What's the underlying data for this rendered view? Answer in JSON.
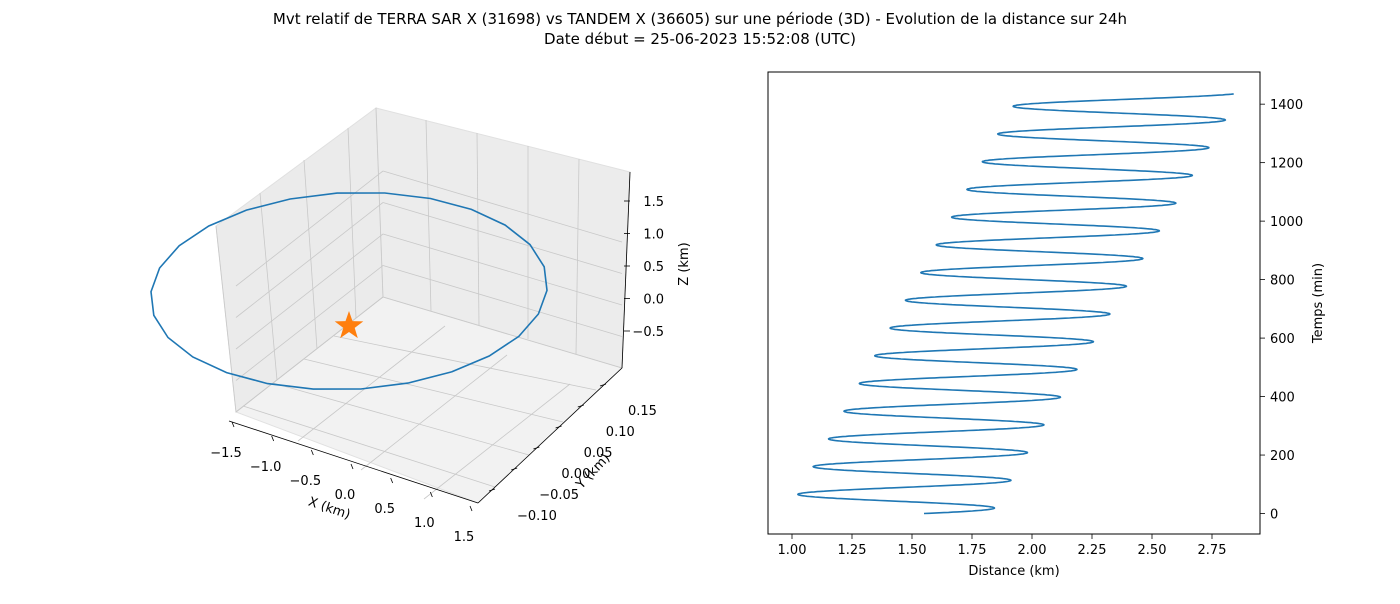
{
  "title_line1": "Mvt relatif de TERRA SAR X (31698) vs TANDEM X (36605) sur une période (3D) - Evolution de la distance sur 24h",
  "title_line2": "Date début = 25-06-2023 15:52:08 (UTC)",
  "colors": {
    "series": "#1f77b4",
    "star": "#ff7f0e",
    "pane_side": "#ebebeb",
    "pane_floor": "#f2f2f2",
    "grid": "#b0b0b0"
  },
  "chart_data": [
    {
      "type": "line3d",
      "xlabel": "X (km)",
      "ylabel": "Y (km)",
      "zlabel": "Z (km)",
      "x_ticks": [
        "−1.5",
        "−1.0",
        "−0.5",
        "0.0",
        "0.5",
        "1.0",
        "1.5"
      ],
      "y_ticks": [
        "−0.10",
        "−0.05",
        "0.00",
        "0.05",
        "0.10",
        "0.15"
      ],
      "z_ticks": [
        "−0.5",
        "0.0",
        "0.5",
        "1.0",
        "1.5"
      ],
      "xlim": [
        -1.6,
        1.6
      ],
      "ylim": [
        -0.12,
        0.18
      ],
      "zlim": [
        -0.9,
        1.8
      ],
      "orbit": {
        "x_amplitude": 1.5,
        "y_amplitude": 0.09,
        "z_amplitude": 1.25,
        "z_center": 0.35,
        "point_count": 26
      },
      "marker": {
        "shape": "star",
        "x": 0.0,
        "y": 0.0,
        "z": 0.0
      }
    },
    {
      "type": "line",
      "xlabel": "Distance (km)",
      "ylabel": "Temps (min)",
      "x_ticks": [
        1.0,
        1.25,
        1.5,
        1.75,
        2.0,
        2.25,
        2.5,
        2.75
      ],
      "y_ticks": [
        0,
        200,
        400,
        600,
        800,
        1000,
        1200,
        1400
      ],
      "xlim": [
        0.9,
        2.95
      ],
      "ylim": [
        -70,
        1510
      ],
      "series": {
        "t_start": 0,
        "t_end": 1435,
        "period_min": 94.8,
        "start_distance": 1.55,
        "max_start": 1.83,
        "max_end": 2.87,
        "min_start": 0.98,
        "min_end": 1.95
      }
    }
  ]
}
